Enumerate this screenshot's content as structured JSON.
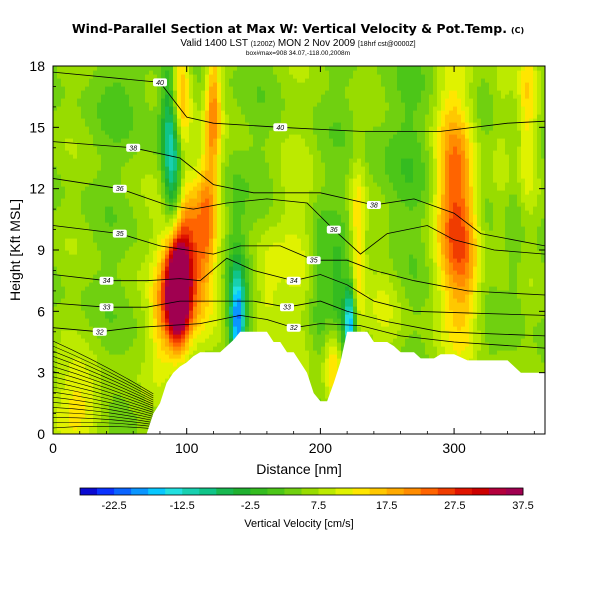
{
  "title": {
    "main": "Wind-Parallel Section at Max W: Vertical Velocity & Pot.Temp.",
    "main_mark": "(C)",
    "valid": "Valid 1400 LST",
    "valid_utc": "(1200Z)",
    "valid_date": "MON 2 Nov 2009",
    "valid_init": "[18hrf cst@0000Z]",
    "sub": "box#max=908 34.07,-118.00,2008m"
  },
  "chart_data": {
    "type": "heatmap",
    "xlabel": "Distance [nm]",
    "ylabel": "Height [Kft MSL]",
    "xlim": [
      0,
      368
    ],
    "ylim": [
      0,
      18
    ],
    "x_ticks": [
      "0",
      "100",
      "200",
      "300"
    ],
    "x_tick_values": [
      0,
      100,
      200,
      300
    ],
    "y_ticks": [
      "0",
      "3",
      "6",
      "9",
      "12",
      "15",
      "18"
    ],
    "y_tick_values": [
      0,
      3,
      6,
      9,
      12,
      15,
      18
    ],
    "colorbar": {
      "label": "Vertical Velocity [cm/s]",
      "min": -27.5,
      "step": 2.5,
      "tick_labels": [
        "-22.5",
        "-12.5",
        "-2.5",
        "7.5",
        "17.5",
        "27.5",
        "37.5"
      ],
      "tick_values": [
        -22.5,
        -12.5,
        -2.5,
        7.5,
        17.5,
        27.5,
        37.5
      ],
      "colors": [
        "#0a0ad2",
        "#0a32ff",
        "#0a64ff",
        "#0a96ff",
        "#08c8ff",
        "#22e0e0",
        "#18d0b0",
        "#10c488",
        "#18b850",
        "#20b030",
        "#34bc20",
        "#4cc618",
        "#70d010",
        "#98dc00",
        "#bcea00",
        "#e0f200",
        "#ffe600",
        "#ffc800",
        "#ffaa00",
        "#ff8c00",
        "#ff6400",
        "#f03c00",
        "#e01400",
        "#cc0000",
        "#b4003c",
        "#a00050"
      ]
    },
    "terrain_kft": [
      [
        0,
        0
      ],
      [
        50,
        0
      ],
      [
        70,
        0
      ],
      [
        75,
        1
      ],
      [
        80,
        1.5
      ],
      [
        85,
        2.5
      ],
      [
        90,
        3
      ],
      [
        95,
        3.3
      ],
      [
        100,
        3.5
      ],
      [
        105,
        3.8
      ],
      [
        110,
        4
      ],
      [
        120,
        4
      ],
      [
        125,
        4
      ],
      [
        130,
        4.3
      ],
      [
        135,
        4.6
      ],
      [
        140,
        5
      ],
      [
        150,
        5
      ],
      [
        160,
        5
      ],
      [
        165,
        4.5
      ],
      [
        170,
        4.5
      ],
      [
        175,
        4
      ],
      [
        180,
        4
      ],
      [
        185,
        3.5
      ],
      [
        190,
        3
      ],
      [
        195,
        2
      ],
      [
        200,
        1.6
      ],
      [
        205,
        1.6
      ],
      [
        210,
        2.5
      ],
      [
        215,
        3.5
      ],
      [
        220,
        5
      ],
      [
        225,
        5
      ],
      [
        235,
        5
      ],
      [
        240,
        4.5
      ],
      [
        250,
        4.5
      ],
      [
        255,
        4.3
      ],
      [
        260,
        4
      ],
      [
        270,
        4
      ],
      [
        275,
        3.7
      ],
      [
        285,
        3.7
      ],
      [
        290,
        3.9
      ],
      [
        300,
        3.9
      ],
      [
        310,
        3.6
      ],
      [
        340,
        3.6
      ],
      [
        350,
        3
      ],
      [
        360,
        3
      ],
      [
        368,
        3
      ]
    ],
    "w_features": [
      {
        "x": 93,
        "z": 7.0,
        "w": 40,
        "sx": 6,
        "sz": 1.8
      },
      {
        "x": 100,
        "z": 8.5,
        "w": 22,
        "sx": 12,
        "sz": 2.8
      },
      {
        "x": 96,
        "z": 16.5,
        "w": 15,
        "sx": 5,
        "sz": 2.2
      },
      {
        "x": 80,
        "z": 5.5,
        "w": 8,
        "sx": 6,
        "sz": 2.0
      },
      {
        "x": 138,
        "z": 5.5,
        "w": -24,
        "sx": 4,
        "sz": 1.6
      },
      {
        "x": 136,
        "z": 8.5,
        "w": -6,
        "sx": 6,
        "sz": 3.0
      },
      {
        "x": 90,
        "z": 12.5,
        "w": -18,
        "sx": 5,
        "sz": 2.5
      },
      {
        "x": 86,
        "z": 15.5,
        "w": -8,
        "sx": 4,
        "sz": 2.0
      },
      {
        "x": 120,
        "z": 16,
        "w": 14,
        "sx": 4,
        "sz": 2.5
      },
      {
        "x": 115,
        "z": 11,
        "w": 10,
        "sx": 5,
        "sz": 2.5
      },
      {
        "x": 160,
        "z": 7,
        "w": 7,
        "sx": 7,
        "sz": 2.0
      },
      {
        "x": 180,
        "z": 9.0,
        "w": 4,
        "sx": 12,
        "sz": 4.0
      },
      {
        "x": 200,
        "z": 7.5,
        "w": -5,
        "sx": 6,
        "sz": 2.5
      },
      {
        "x": 213,
        "z": 6.5,
        "w": -6,
        "sx": 4,
        "sz": 2.0
      },
      {
        "x": 222,
        "z": 5.5,
        "w": -22,
        "sx": 3,
        "sz": 1.4
      },
      {
        "x": 228,
        "z": 9.5,
        "w": 10,
        "sx": 4,
        "sz": 3.0
      },
      {
        "x": 210,
        "z": 3.5,
        "w": 12,
        "sx": 5,
        "sz": 1.5
      },
      {
        "x": 300,
        "z": 11.5,
        "w": 18,
        "sx": 10,
        "sz": 4.0
      },
      {
        "x": 310,
        "z": 8.0,
        "w": 8,
        "sx": 8,
        "sz": 3.0
      },
      {
        "x": 335,
        "z": 14,
        "w": 4,
        "sx": 6,
        "sz": 4.0
      },
      {
        "x": 345,
        "z": 10,
        "w": -3,
        "sx": 5,
        "sz": 4.0
      },
      {
        "x": 355,
        "z": 16,
        "w": 8,
        "sx": 5,
        "sz": 3.0
      },
      {
        "x": 20,
        "z": 1.5,
        "w": 8,
        "sx": 15,
        "sz": 1.5
      },
      {
        "x": 60,
        "z": 17,
        "w": -3,
        "sx": 15,
        "sz": 2.0
      },
      {
        "x": 260,
        "z": 13.5,
        "w": -3,
        "sx": 20,
        "sz": 3.0
      },
      {
        "x": 250,
        "z": 6.0,
        "w": 4,
        "sx": 10,
        "sz": 2.0
      }
    ],
    "w_background": 5,
    "theta_contours": [
      {
        "label": "40",
        "points": [
          [
            0,
            17.7
          ],
          [
            80,
            17.2
          ],
          [
            100,
            15.5
          ],
          [
            120,
            15.2
          ],
          [
            170,
            15.0
          ],
          [
            230,
            14.8
          ],
          [
            290,
            14.8
          ],
          [
            340,
            15.2
          ],
          [
            368,
            15.3
          ]
        ]
      },
      {
        "label": "38",
        "points": [
          [
            0,
            14.3
          ],
          [
            60,
            14.0
          ],
          [
            95,
            13.5
          ],
          [
            120,
            12.2
          ],
          [
            150,
            11.8
          ],
          [
            200,
            11.8
          ],
          [
            240,
            11.2
          ],
          [
            270,
            11.5
          ],
          [
            300,
            10.8
          ],
          [
            320,
            9.8
          ],
          [
            368,
            9.2
          ]
        ]
      },
      {
        "label": "36",
        "points": [
          [
            0,
            12.5
          ],
          [
            50,
            12.0
          ],
          [
            85,
            11.2
          ],
          [
            105,
            11.0
          ],
          [
            130,
            11.3
          ],
          [
            160,
            11.5
          ],
          [
            190,
            11.3
          ],
          [
            210,
            10.0
          ],
          [
            230,
            8.8
          ],
          [
            250,
            9.8
          ],
          [
            280,
            10.2
          ],
          [
            300,
            9.5
          ],
          [
            330,
            9.0
          ],
          [
            368,
            8.8
          ]
        ]
      },
      {
        "label": "35",
        "points": [
          [
            0,
            10.2
          ],
          [
            50,
            9.8
          ],
          [
            80,
            9.2
          ],
          [
            100,
            9.0
          ],
          [
            120,
            8.8
          ],
          [
            140,
            9.2
          ],
          [
            170,
            9.2
          ],
          [
            195,
            8.5
          ],
          [
            220,
            8.5
          ],
          [
            240,
            8.0
          ],
          [
            270,
            7.5
          ],
          [
            310,
            7.0
          ],
          [
            368,
            6.8
          ]
        ]
      },
      {
        "label": "34",
        "points": [
          [
            0,
            7.8
          ],
          [
            40,
            7.5
          ],
          [
            70,
            7.5
          ],
          [
            95,
            7.6
          ],
          [
            110,
            7.5
          ],
          [
            130,
            8.6
          ],
          [
            150,
            8.0
          ],
          [
            180,
            7.5
          ],
          [
            200,
            7.8
          ],
          [
            220,
            7.3
          ],
          [
            240,
            6.5
          ],
          [
            270,
            6.0
          ],
          [
            368,
            5.8
          ]
        ]
      },
      {
        "label": "33",
        "points": [
          [
            0,
            6.4
          ],
          [
            40,
            6.2
          ],
          [
            70,
            6.2
          ],
          [
            95,
            6.5
          ],
          [
            125,
            6.5
          ],
          [
            150,
            6.5
          ],
          [
            175,
            6.2
          ],
          [
            200,
            6.5
          ],
          [
            220,
            6.0
          ],
          [
            250,
            5.5
          ],
          [
            290,
            5.0
          ],
          [
            368,
            4.8
          ]
        ]
      },
      {
        "label": "32",
        "points": [
          [
            0,
            5.2
          ],
          [
            35,
            5.0
          ],
          [
            60,
            5.2
          ],
          [
            85,
            5.3
          ],
          [
            110,
            5.4
          ],
          [
            140,
            5.8
          ],
          [
            160,
            5.6
          ],
          [
            180,
            5.2
          ],
          [
            200,
            5.4
          ],
          [
            230,
            5.3
          ],
          [
            260,
            4.8
          ],
          [
            300,
            4.5
          ],
          [
            368,
            4.2
          ]
        ]
      }
    ],
    "inversion_lines": {
      "count": 18,
      "x_start": 0,
      "x_end": 75,
      "z_bottom": 0.3,
      "z_top": 4.8
    }
  }
}
